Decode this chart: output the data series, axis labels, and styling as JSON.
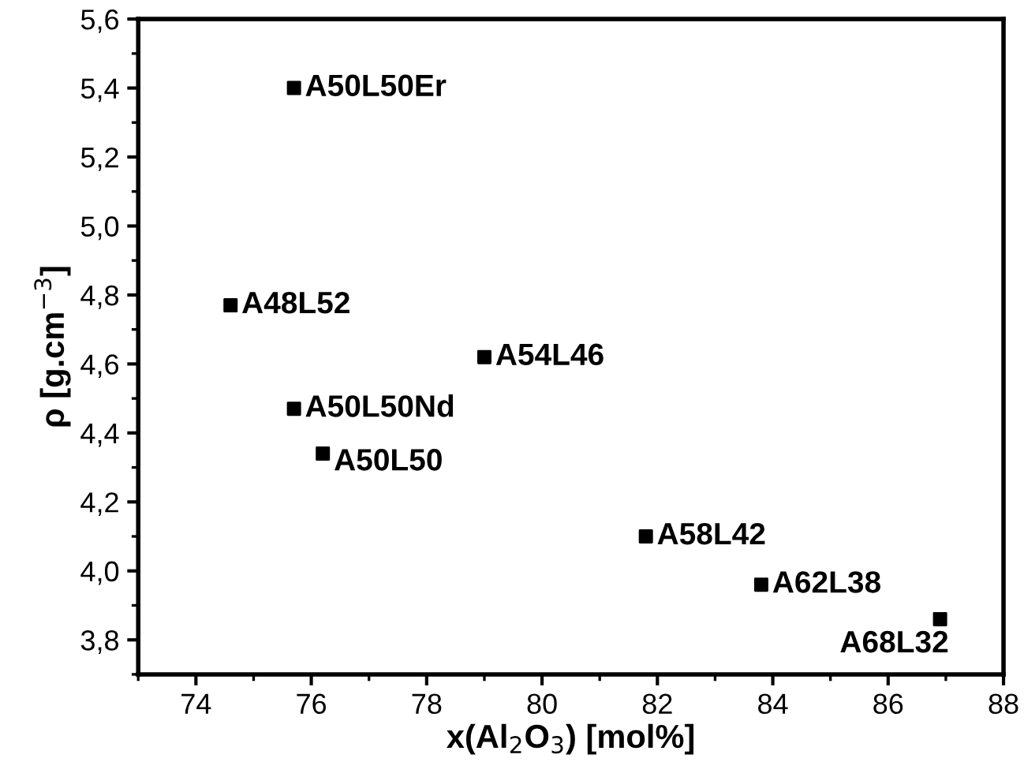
{
  "chart_data": {
    "type": "scatter",
    "xlabel": "x(Al$_{2}$O$_{3}$) [mol%]",
    "ylabel": "ρ [g.cm$^{−3}$]",
    "x": [
      75.7,
      74.6,
      79.0,
      75.7,
      76.2,
      81.8,
      83.8,
      86.9
    ],
    "series": [
      {
        "color": "#000000",
        "values": [
          5.4,
          4.77,
          4.62,
          4.47,
          4.34,
          4.1,
          3.96,
          3.86
        ]
      }
    ],
    "marker": "square",
    "grid": false,
    "legend": false,
    "xlim": [
      73,
      88
    ],
    "xticks": [
      74,
      76,
      78,
      80,
      82,
      84,
      86,
      88
    ],
    "ylim": [
      3.7,
      5.6
    ],
    "yticks": [
      {
        "value": 3.8,
        "label": "3,8"
      },
      {
        "value": 4.0,
        "label": "4,0"
      },
      {
        "value": 4.2,
        "label": "4,2"
      },
      {
        "value": 4.4,
        "label": "4,4"
      },
      {
        "value": 4.6,
        "label": "4,6"
      },
      {
        "value": 4.8,
        "label": "4,8"
      },
      {
        "value": 5.0,
        "label": "5,0"
      },
      {
        "value": 5.2,
        "label": "5,2"
      },
      {
        "value": 5.4,
        "label": "5,4"
      },
      {
        "value": 5.6,
        "label": "5,6"
      }
    ],
    "annotations": [
      {
        "text": "A50L50Er",
        "x": 75.7,
        "y": 5.4
      },
      {
        "text": "A48L52",
        "x": 74.6,
        "y": 4.77
      },
      {
        "text": "A54L46",
        "x": 79.0,
        "y": 4.62
      },
      {
        "text": "A50L50Nd",
        "x": 75.7,
        "y": 4.47
      },
      {
        "text": "A50L50",
        "x": 76.2,
        "y": 4.34
      },
      {
        "text": "A58L42",
        "x": 81.8,
        "y": 4.1
      },
      {
        "text": "A62L38",
        "x": 83.8,
        "y": 3.96
      },
      {
        "text": "A68L32",
        "x": 86.9,
        "y": 3.86
      }
    ]
  }
}
